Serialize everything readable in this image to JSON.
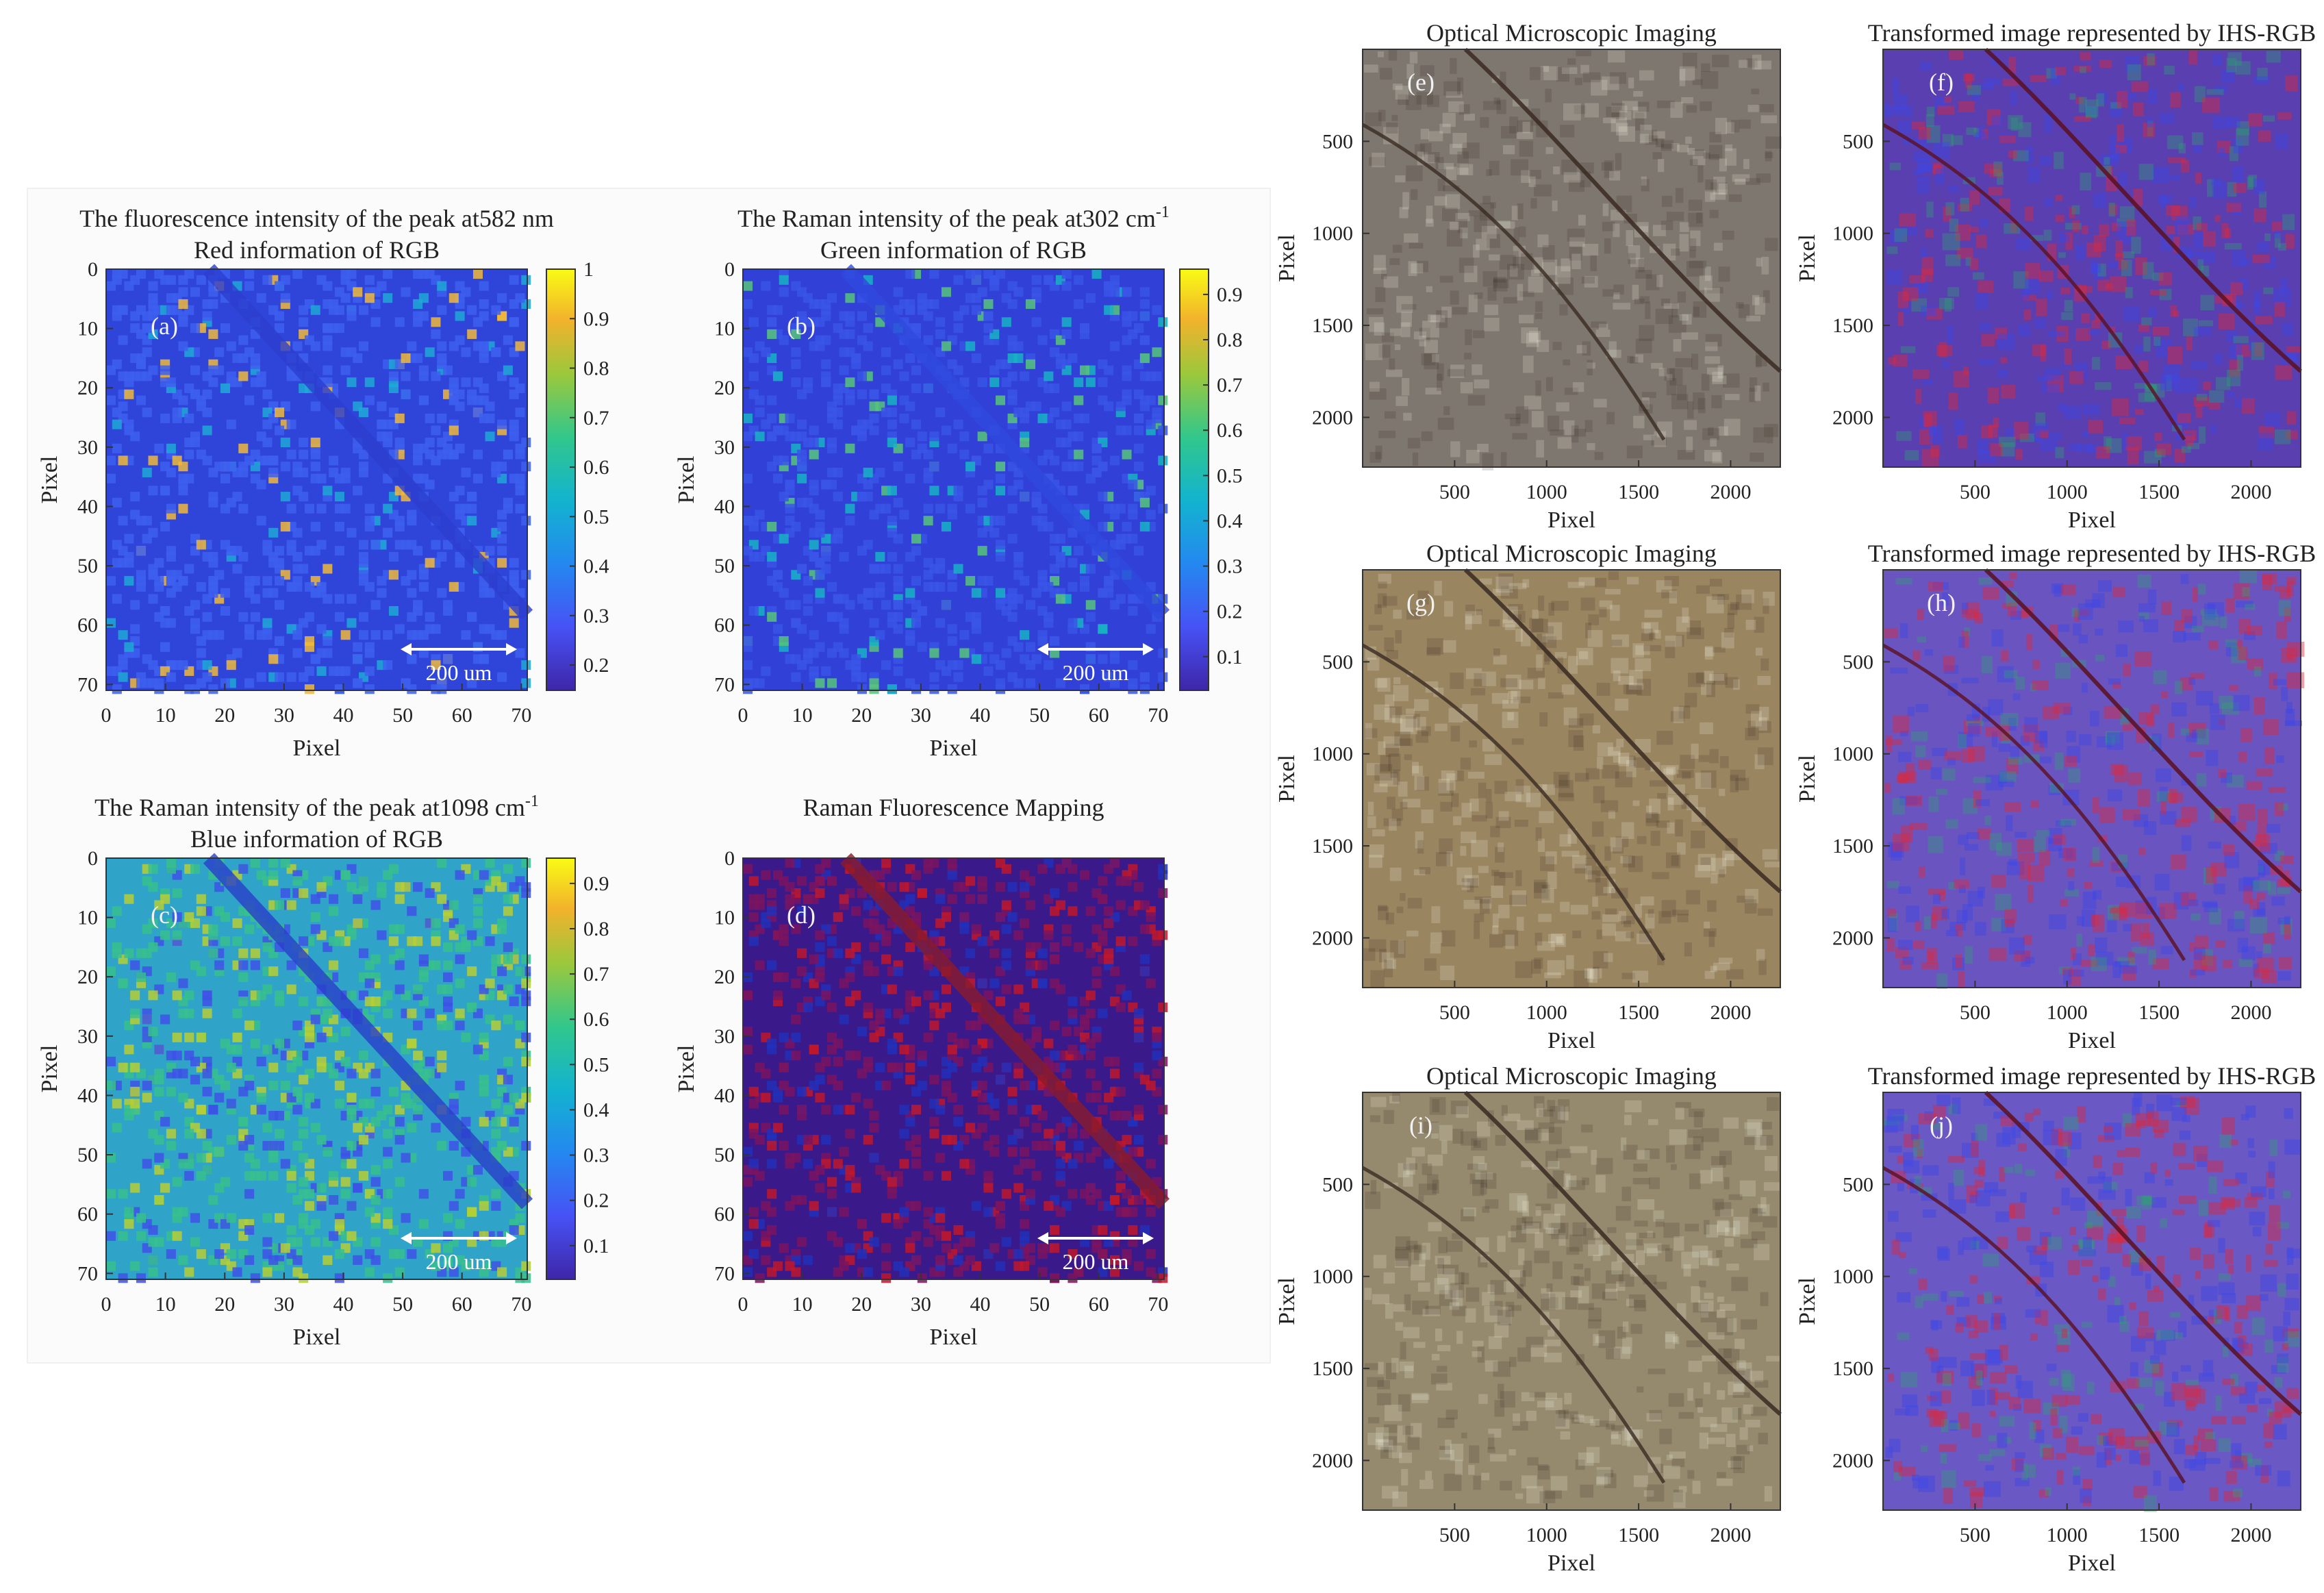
{
  "left_panels": [
    {
      "id": "a",
      "label": "(a)",
      "title_line1": "The fluorescence intensity of the peak at582 nm",
      "title_sup": "",
      "title_line2": "Red information of RGB",
      "colormap": "parula",
      "xlabel": "Pixel",
      "ylabel": "Pixel",
      "x_ticks": [
        "0",
        "10",
        "20",
        "30",
        "40",
        "50",
        "60",
        "70"
      ],
      "y_ticks": [
        "0",
        "10",
        "20",
        "30",
        "40",
        "50",
        "60",
        "70"
      ],
      "cbar_ticks": [
        "1",
        "0.9",
        "0.8",
        "0.7",
        "0.6",
        "0.5",
        "0.4",
        "0.3",
        "0.2"
      ],
      "scalebar": "200 um",
      "base_color": "#2f44d8"
    },
    {
      "id": "b",
      "label": "(b)",
      "title_line1": "The Raman intensity of the peak at302 cm",
      "title_sup": "-1",
      "title_line2": "Green information of RGB",
      "colormap": "parula",
      "xlabel": "Pixel",
      "ylabel": "Pixel",
      "x_ticks": [
        "0",
        "10",
        "20",
        "30",
        "40",
        "50",
        "60",
        "70"
      ],
      "y_ticks": [
        "0",
        "10",
        "20",
        "30",
        "40",
        "50",
        "60",
        "70"
      ],
      "cbar_ticks": [
        "0.9",
        "0.8",
        "0.7",
        "0.6",
        "0.5",
        "0.4",
        "0.3",
        "0.2",
        "0.1"
      ],
      "scalebar": "200 um",
      "base_color": "#3140d6"
    },
    {
      "id": "c",
      "label": "(c)",
      "title_line1": "The Raman intensity of the peak at1098 cm",
      "title_sup": "-1",
      "title_line2": "Blue information of RGB",
      "colormap": "parula",
      "xlabel": "Pixel",
      "ylabel": "Pixel",
      "x_ticks": [
        "0",
        "10",
        "20",
        "30",
        "40",
        "50",
        "60",
        "70"
      ],
      "y_ticks": [
        "0",
        "10",
        "20",
        "30",
        "40",
        "50",
        "60",
        "70"
      ],
      "cbar_ticks": [
        "0.9",
        "0.8",
        "0.7",
        "0.6",
        "0.5",
        "0.4",
        "0.3",
        "0.2",
        "0.1"
      ],
      "scalebar": "200 um",
      "base_color": "#2fa3c8"
    },
    {
      "id": "d",
      "label": "(d)",
      "title_line1": "Raman Fluorescence Mapping",
      "title_sup": "",
      "title_line2": "",
      "colormap": "rgb",
      "xlabel": "Pixel",
      "ylabel": "Pixel",
      "x_ticks": [
        "0",
        "10",
        "20",
        "30",
        "40",
        "50",
        "60",
        "70"
      ],
      "y_ticks": [
        "0",
        "10",
        "20",
        "30",
        "40",
        "50",
        "60",
        "70"
      ],
      "cbar_ticks": [],
      "scalebar": "200 um",
      "base_color": "#3a1a8a"
    }
  ],
  "right_panels": [
    {
      "id": "e",
      "label": "(e)",
      "title": "Optical Microscopic Imaging",
      "fill": "#7e776f",
      "x_ticks": [
        "500",
        "1000",
        "1500",
        "2000"
      ],
      "y_ticks": [
        "500",
        "1000",
        "1500",
        "2000"
      ],
      "xlabel": "Pixel",
      "ylabel": "Pixel"
    },
    {
      "id": "f",
      "label": "(f)",
      "title": "Transformed image represented by IHS-RGB",
      "fill": "#5a3fb0",
      "x_ticks": [
        "500",
        "1000",
        "1500",
        "2000"
      ],
      "y_ticks": [
        "500",
        "1000",
        "1500",
        "2000"
      ],
      "xlabel": "Pixel",
      "ylabel": "Pixel"
    },
    {
      "id": "g",
      "label": "(g)",
      "title": "Optical Microscopic Imaging",
      "fill": "#9a8561",
      "x_ticks": [
        "500",
        "1000",
        "1500",
        "2000"
      ],
      "y_ticks": [
        "500",
        "1000",
        "1500",
        "2000"
      ],
      "xlabel": "Pixel",
      "ylabel": "Pixel"
    },
    {
      "id": "h",
      "label": "(h)",
      "title": "Transformed image represented by IHS-RGB",
      "fill": "#6a55c0",
      "x_ticks": [
        "500",
        "1000",
        "1500",
        "2000"
      ],
      "y_ticks": [
        "500",
        "1000",
        "1500",
        "2000"
      ],
      "xlabel": "Pixel",
      "ylabel": "Pixel"
    },
    {
      "id": "i",
      "label": "(i)",
      "title": "Optical Microscopic Imaging",
      "fill": "#958a6e",
      "x_ticks": [
        "500",
        "1000",
        "1500",
        "2000"
      ],
      "y_ticks": [
        "500",
        "1000",
        "1500",
        "2000"
      ],
      "xlabel": "Pixel",
      "ylabel": "Pixel"
    },
    {
      "id": "j",
      "label": "(j)",
      "title": "Transformed image represented by IHS-RGB",
      "fill": "#6a58c4",
      "x_ticks": [
        "500",
        "1000",
        "1500",
        "2000"
      ],
      "y_ticks": [
        "500",
        "1000",
        "1500",
        "2000"
      ],
      "xlabel": "Pixel",
      "ylabel": "Pixel"
    }
  ]
}
